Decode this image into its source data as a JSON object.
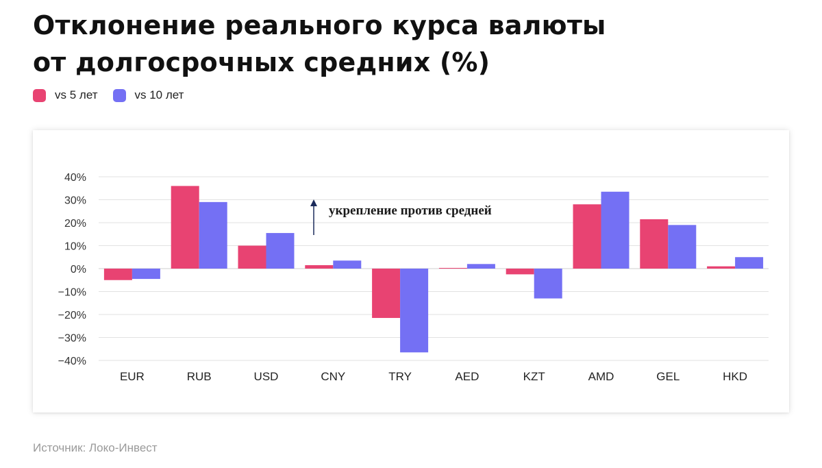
{
  "title_lines": [
    "Отклонение реального курса валюты",
    "от долгосрочных средних (%)"
  ],
  "legend": [
    {
      "label": "vs 5 лет",
      "color": "#e84372"
    },
    {
      "label": "vs 10 лет",
      "color": "#7470f4"
    }
  ],
  "source": "Источник: Локо-Инвест",
  "chart_data": {
    "type": "bar",
    "title": "Отклонение реального курса валюты от долгосрочных средних (%)",
    "categories": [
      "EUR",
      "RUB",
      "USD",
      "CNY",
      "TRY",
      "AED",
      "KZT",
      "AMD",
      "GEL",
      "HKD"
    ],
    "series": [
      {
        "name": "vs 5 лет",
        "color": "#e84372",
        "values": [
          -5,
          36,
          10,
          1.5,
          -21.5,
          0.3,
          -2.5,
          28,
          21.5,
          1
        ]
      },
      {
        "name": "vs 10 лет",
        "color": "#7470f4",
        "values": [
          -4.5,
          29,
          15.5,
          3.5,
          -36.5,
          2,
          -13,
          33.5,
          19,
          5
        ]
      }
    ],
    "y_ticks": [
      "40%",
      "30%",
      "20%",
      "10%",
      "0%",
      "−10%",
      "−20%",
      "−30%",
      "−40%"
    ],
    "ylim": [
      -40,
      40
    ],
    "grid": true,
    "legend_position": "top-left",
    "annotation": {
      "text": "укрепление против средней",
      "arrow": "up"
    }
  }
}
